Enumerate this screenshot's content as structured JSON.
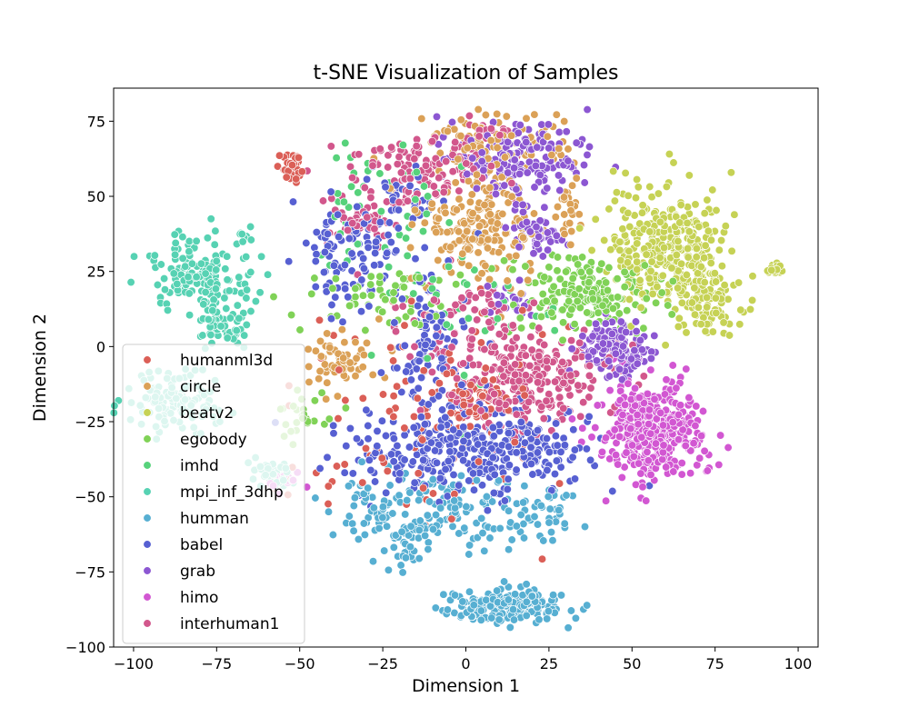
{
  "chart_data": {
    "type": "scatter",
    "title": "t-SNE Visualization of Samples",
    "xlabel": "Dimension 1",
    "ylabel": "Dimension 2",
    "xlim": [
      -106,
      106
    ],
    "ylim": [
      -100,
      86
    ],
    "xticks": [
      -100,
      -75,
      -50,
      -25,
      0,
      25,
      50,
      75,
      100
    ],
    "yticks": [
      -100,
      -75,
      -50,
      -25,
      0,
      25,
      50,
      75
    ],
    "xtick_labels": [
      "−100",
      "−75",
      "−50",
      "−25",
      "0",
      "25",
      "50",
      "75",
      "100"
    ],
    "ytick_labels": [
      "−100",
      "−75",
      "−50",
      "−25",
      "0",
      "25",
      "50",
      "75"
    ],
    "grid": false,
    "legend_position": "lower-left",
    "series": [
      {
        "name": "humanml3d",
        "color": "#db5f57",
        "clusters": [
          {
            "cx": -53,
            "cy": 60,
            "sx": 2.2,
            "sy": 2.5,
            "n": 30
          },
          {
            "cx": 3,
            "cy": -18,
            "sx": 6,
            "sy": 5,
            "n": 70
          },
          {
            "cx": -15,
            "cy": -20,
            "sx": 22,
            "sy": 22,
            "n": 90
          }
        ]
      },
      {
        "name": "circle",
        "color": "#dba157",
        "clusters": [
          {
            "cx": 8,
            "cy": 68,
            "sx": 10,
            "sy": 5,
            "n": 90
          },
          {
            "cx": 5,
            "cy": 40,
            "sx": 9,
            "sy": 9,
            "n": 180
          },
          {
            "cx": -38,
            "cy": -5,
            "sx": 5,
            "sy": 5,
            "n": 60
          },
          {
            "cx": 30,
            "cy": 45,
            "sx": 2,
            "sy": 6,
            "n": 25
          }
        ]
      },
      {
        "name": "beatv2",
        "color": "#c6d255",
        "clusters": [
          {
            "cx": 60,
            "cy": 33,
            "sx": 9,
            "sy": 10,
            "n": 320
          },
          {
            "cx": 72,
            "cy": 15,
            "sx": 5,
            "sy": 6,
            "n": 100
          },
          {
            "cx": 93,
            "cy": 26,
            "sx": 1,
            "sy": 1,
            "n": 15
          }
        ]
      },
      {
        "name": "egobody",
        "color": "#80d257",
        "clusters": [
          {
            "cx": 35,
            "cy": 18,
            "sx": 11,
            "sy": 7,
            "n": 180
          },
          {
            "cx": -25,
            "cy": 15,
            "sx": 12,
            "sy": 6,
            "n": 60
          },
          {
            "cx": -48,
            "cy": -22,
            "sx": 4,
            "sy": 4,
            "n": 25
          }
        ]
      },
      {
        "name": "imhd",
        "color": "#57d27b",
        "clusters": [
          {
            "cx": -25,
            "cy": 45,
            "sx": 12,
            "sy": 12,
            "n": 50
          },
          {
            "cx": 5,
            "cy": 10,
            "sx": 15,
            "sy": 10,
            "n": 40
          }
        ]
      },
      {
        "name": "mpi_inf_3dhp",
        "color": "#57d2b3",
        "clusters": [
          {
            "cx": -80,
            "cy": 25,
            "sx": 7,
            "sy": 6,
            "n": 160
          },
          {
            "cx": -73,
            "cy": 7,
            "sx": 4,
            "sy": 4,
            "n": 60
          },
          {
            "cx": -67,
            "cy": 37,
            "sx": 1,
            "sy": 1,
            "n": 8
          },
          {
            "cx": -88,
            "cy": -18,
            "sx": 8,
            "sy": 5,
            "n": 120
          },
          {
            "cx": -58,
            "cy": -43,
            "sx": 4,
            "sy": 3,
            "n": 40
          }
        ]
      },
      {
        "name": "humman",
        "color": "#57afd2",
        "clusters": [
          {
            "cx": 12,
            "cy": -86,
            "sx": 8,
            "sy": 3,
            "n": 200
          },
          {
            "cx": -5,
            "cy": -55,
            "sx": 14,
            "sy": 6,
            "n": 120
          },
          {
            "cx": -30,
            "cy": -55,
            "sx": 4,
            "sy": 6,
            "n": 40
          },
          {
            "cx": -18,
            "cy": -67,
            "sx": 5,
            "sy": 4,
            "n": 30
          },
          {
            "cx": 25,
            "cy": -55,
            "sx": 5,
            "sy": 5,
            "n": 40
          }
        ]
      },
      {
        "name": "babel",
        "color": "#5760d2",
        "clusters": [
          {
            "cx": -2,
            "cy": -35,
            "sx": 18,
            "sy": 7,
            "n": 280
          },
          {
            "cx": -10,
            "cy": -5,
            "sx": 6,
            "sy": 15,
            "n": 120
          },
          {
            "cx": -35,
            "cy": 30,
            "sx": 8,
            "sy": 10,
            "n": 110
          },
          {
            "cx": -18,
            "cy": 50,
            "sx": 5,
            "sy": 4,
            "n": 30
          },
          {
            "cx": 18,
            "cy": -33,
            "sx": 8,
            "sy": 5,
            "n": 60
          }
        ]
      },
      {
        "name": "grab",
        "color": "#8c57d2",
        "clusters": [
          {
            "cx": 15,
            "cy": 62,
            "sx": 11,
            "sy": 6,
            "n": 170
          },
          {
            "cx": 21,
            "cy": 38,
            "sx": 4,
            "sy": 4,
            "n": 60
          },
          {
            "cx": 45,
            "cy": 0,
            "sx": 5,
            "sy": 5,
            "n": 130
          },
          {
            "cx": 13,
            "cy": 16,
            "sx": 3,
            "sy": 3,
            "n": 20
          }
        ]
      },
      {
        "name": "himo",
        "color": "#d257d2",
        "clusters": [
          {
            "cx": 57,
            "cy": -28,
            "sx": 7,
            "sy": 8,
            "n": 420
          },
          {
            "cx": -55,
            "cy": -45,
            "sx": 3,
            "sy": 2,
            "n": 20
          }
        ]
      },
      {
        "name": "interhuman1",
        "color": "#d2578c",
        "clusters": [
          {
            "cx": 18,
            "cy": -10,
            "sx": 12,
            "sy": 8,
            "n": 280
          },
          {
            "cx": -12,
            "cy": 60,
            "sx": 10,
            "sy": 5,
            "n": 120
          },
          {
            "cx": -30,
            "cy": 42,
            "sx": 6,
            "sy": 5,
            "n": 60
          },
          {
            "cx": 8,
            "cy": 72,
            "sx": 4,
            "sy": 2,
            "n": 20
          },
          {
            "cx": -5,
            "cy": 12,
            "sx": 10,
            "sy": 6,
            "n": 50
          }
        ]
      }
    ]
  }
}
